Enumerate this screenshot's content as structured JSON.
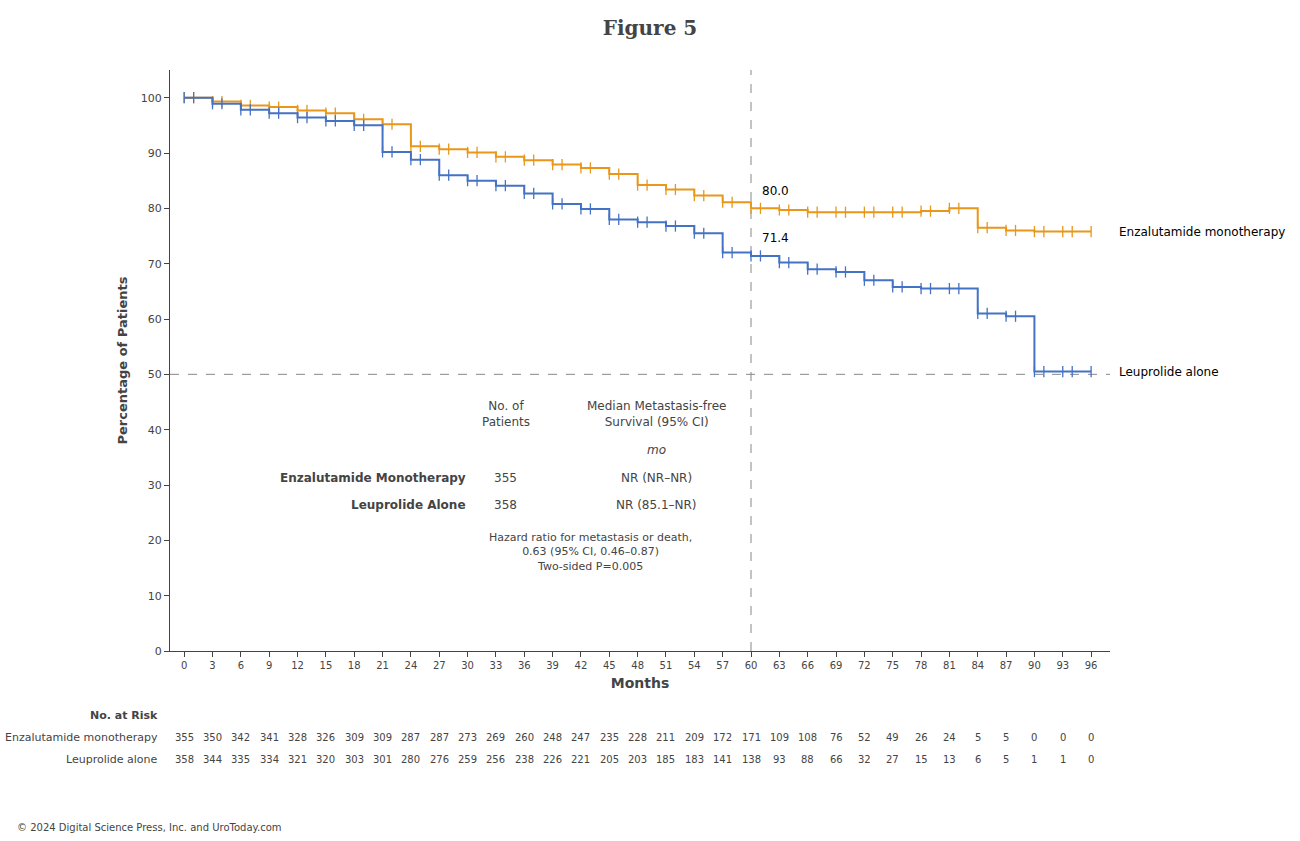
{
  "chart_data": {
    "type": "step",
    "title": "Figure 5",
    "xlabel": "Months",
    "ylabel": "Percentage of Patients",
    "xlim": [
      -1.5,
      98
    ],
    "ylim": [
      0,
      105
    ],
    "xticks": [
      0,
      3,
      6,
      9,
      12,
      15,
      18,
      21,
      24,
      27,
      30,
      33,
      36,
      39,
      42,
      45,
      48,
      51,
      54,
      57,
      60,
      63,
      66,
      69,
      72,
      75,
      78,
      81,
      84,
      87,
      90,
      93,
      96
    ],
    "yticks": [
      0,
      10,
      20,
      30,
      40,
      50,
      60,
      70,
      80,
      90,
      100
    ],
    "grid": false,
    "marker": "vline",
    "x": [
      0,
      1,
      3,
      4,
      6,
      7,
      9,
      10,
      12,
      13,
      15,
      16,
      18,
      19,
      21,
      22,
      24,
      25,
      27,
      28,
      30,
      31,
      33,
      34,
      36,
      37,
      39,
      40,
      42,
      43,
      45,
      46,
      48,
      49,
      51,
      52,
      54,
      55,
      57,
      58,
      60,
      61,
      63,
      64,
      66,
      67,
      69,
      70,
      72,
      73,
      75,
      76,
      78,
      79,
      81,
      82,
      84,
      85,
      87,
      88,
      90,
      91,
      93,
      94,
      96
    ],
    "series": [
      {
        "name": "Enzalutamide monotherapy",
        "color": "#e8971a",
        "values": [
          100,
          100,
          99.3,
          99.3,
          98.6,
          98.6,
          98.3,
          98.3,
          97.7,
          97.7,
          97.2,
          97.2,
          96.1,
          96.1,
          95.2,
          95.2,
          91.2,
          91.2,
          90.7,
          90.7,
          90.1,
          90.1,
          89.3,
          89.3,
          88.7,
          88.7,
          87.9,
          87.9,
          87.3,
          87.3,
          86.2,
          86.2,
          84.2,
          84.2,
          83.4,
          83.4,
          82.3,
          82.3,
          81.1,
          81.1,
          80.0,
          80.0,
          79.7,
          79.7,
          79.3,
          79.3,
          79.3,
          79.3,
          79.3,
          79.3,
          79.3,
          79.3,
          79.5,
          79.5,
          80.0,
          80.0,
          76.5,
          76.5,
          76.0,
          76.0,
          75.8,
          75.8,
          75.8,
          75.8,
          75.8
        ],
        "at_risk": [
          355,
          350,
          342,
          341,
          328,
          326,
          309,
          309,
          287,
          287,
          273,
          269,
          260,
          248,
          247,
          235,
          228,
          211,
          209,
          172,
          171,
          109,
          108,
          76,
          52,
          49,
          26,
          24,
          5,
          5,
          0,
          0,
          0
        ]
      },
      {
        "name": "Leuprolide alone",
        "color": "#4472c4",
        "values": [
          100,
          100,
          98.9,
          98.9,
          97.8,
          97.8,
          97.2,
          97.2,
          96.4,
          96.4,
          95.8,
          95.8,
          95.0,
          95.0,
          90.2,
          90.2,
          88.8,
          88.8,
          86.0,
          86.0,
          85.0,
          85.0,
          84.1,
          84.1,
          82.7,
          82.7,
          80.8,
          80.8,
          79.9,
          79.9,
          78.0,
          78.0,
          77.5,
          77.5,
          76.8,
          76.8,
          75.5,
          75.5,
          72.0,
          72.0,
          71.4,
          71.4,
          70.2,
          70.2,
          69.0,
          69.0,
          68.5,
          68.5,
          67.0,
          67.0,
          65.8,
          65.8,
          65.5,
          65.5,
          65.5,
          65.5,
          61.0,
          61.0,
          60.5,
          60.5,
          50.5,
          50.5,
          50.5,
          50.5,
          50.5
        ],
        "at_risk": [
          358,
          344,
          335,
          334,
          321,
          320,
          303,
          301,
          280,
          276,
          259,
          256,
          238,
          226,
          221,
          205,
          203,
          185,
          183,
          141,
          138,
          93,
          88,
          66,
          32,
          27,
          15,
          13,
          6,
          5,
          1,
          1,
          0
        ]
      }
    ],
    "reference_lines": {
      "x": [
        60
      ],
      "y": [
        50
      ]
    },
    "annotations": [
      {
        "text": "80.0",
        "x": 61.0,
        "y": 81.5
      },
      {
        "text": "71.4",
        "x": 61.0,
        "y": 73.0
      }
    ],
    "stats_table": {
      "headers": [
        [
          "No. of",
          "Patients"
        ],
        [
          "Median Metastasis-free",
          "Survival (95% CI)"
        ]
      ],
      "unit": "mo",
      "rows": [
        {
          "label": "Enzalutamide Monotherapy",
          "n": 355,
          "median": "NR (NR–NR)"
        },
        {
          "label": "Leuprolide Alone",
          "n": 358,
          "median": "NR (85.1–NR)"
        }
      ],
      "hazard_ratio": [
        "Hazard ratio for metastasis or death,",
        "0.63 (95% CI, 0.46–0.87)",
        "Two-sided P=0.005"
      ]
    },
    "at_risk_title": "No. at Risk",
    "footer": "© 2024 Digital Science Press, Inc. and UroToday.com"
  }
}
